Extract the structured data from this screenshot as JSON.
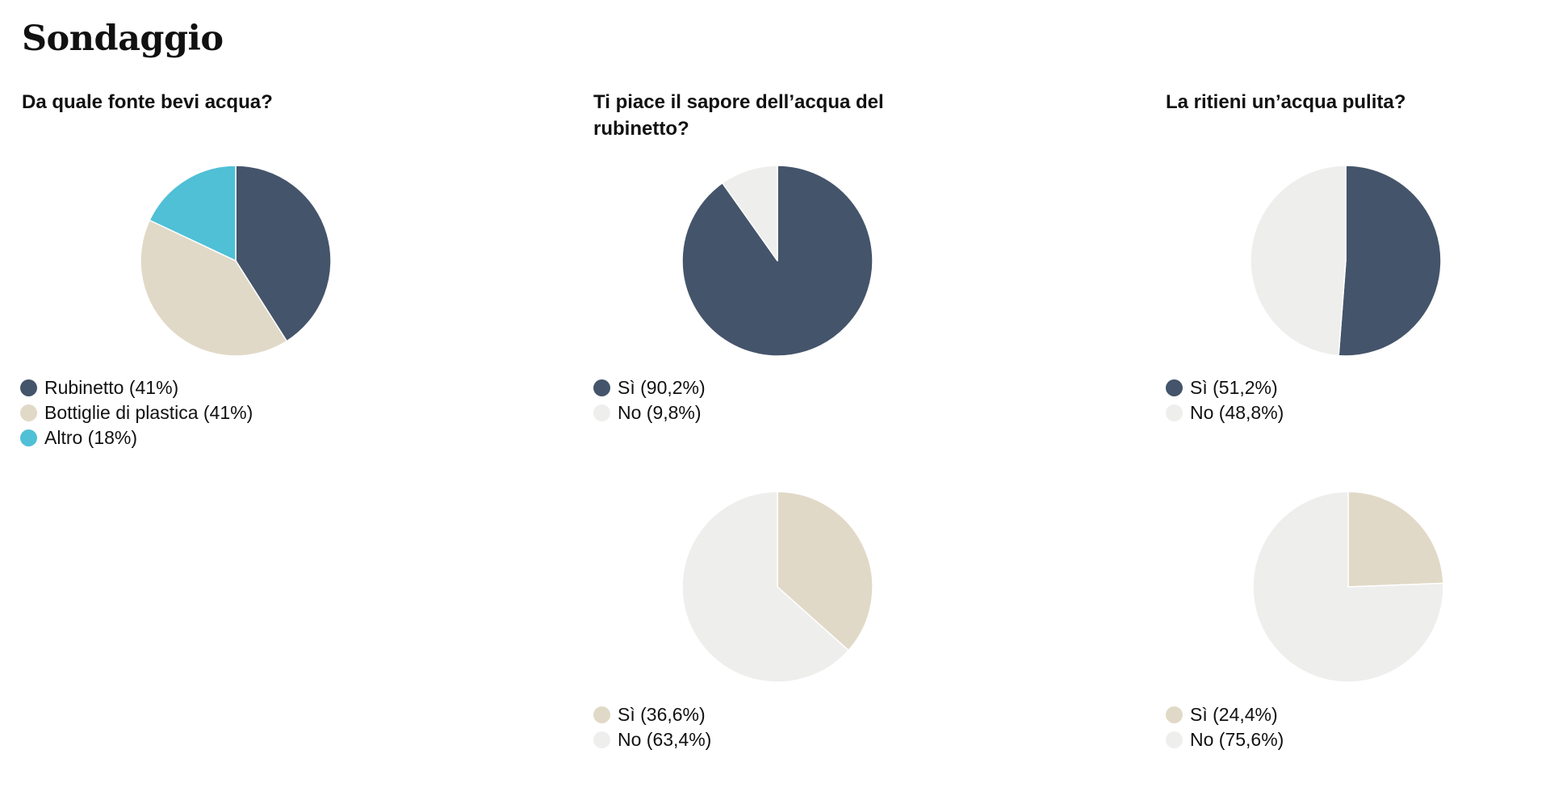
{
  "page": {
    "title": "Sondaggio"
  },
  "questions": [
    "Da quale fonte bevi acqua?",
    "Ti piace il sapore dell’acqua del rubinetto?",
    "La ritieni un’acqua pulita?"
  ],
  "colors": {
    "dark_slate": "#44546A",
    "beige": "#E1D9C7",
    "cyan": "#4FC0D6",
    "light_grey": "#EEEEED"
  },
  "chart_data": [
    {
      "type": "pie",
      "title": "Da quale fonte bevi acqua?",
      "slices": [
        {
          "label": "Rubinetto (41%)",
          "name": "Rubinetto",
          "value": 41,
          "color": "#44546A"
        },
        {
          "label": "Bottiglie di plastica (41%)",
          "name": "Bottiglie di plastica",
          "value": 41,
          "color": "#E1D9C7"
        },
        {
          "label": "Altro (18%)",
          "name": "Altro",
          "value": 18,
          "color": "#4FC0D6"
        }
      ]
    },
    {
      "type": "pie",
      "title": "Ti piace il sapore dell’acqua del rubinetto?",
      "slices": [
        {
          "label": "Sì (90,2%)",
          "name": "Sì",
          "value": 90.2,
          "color": "#44546A"
        },
        {
          "label": "No (9,8%)",
          "name": "No",
          "value": 9.8,
          "color": "#EEEEED"
        }
      ]
    },
    {
      "type": "pie",
      "title": "La ritieni un’acqua pulita?",
      "slices": [
        {
          "label": "Sì (51,2%)",
          "name": "Sì",
          "value": 51.2,
          "color": "#44546A"
        },
        {
          "label": "No (48,8%)",
          "name": "No",
          "value": 48.8,
          "color": "#EEEEED"
        }
      ]
    },
    {
      "type": "pie",
      "title": "Ti piace il sapore dell’acqua del rubinetto?",
      "slices": [
        {
          "label": "Sì (36,6%)",
          "name": "Sì",
          "value": 36.6,
          "color": "#E1D9C7"
        },
        {
          "label": "No (63,4%)",
          "name": "No",
          "value": 63.4,
          "color": "#EEEEED"
        }
      ]
    },
    {
      "type": "pie",
      "title": "La ritieni un’acqua pulita?",
      "slices": [
        {
          "label": "Sì (24,4%)",
          "name": "Sì",
          "value": 24.4,
          "color": "#E1D9C7"
        },
        {
          "label": "No (75,6%)",
          "name": "No",
          "value": 75.6,
          "color": "#EEEEED"
        }
      ]
    }
  ]
}
